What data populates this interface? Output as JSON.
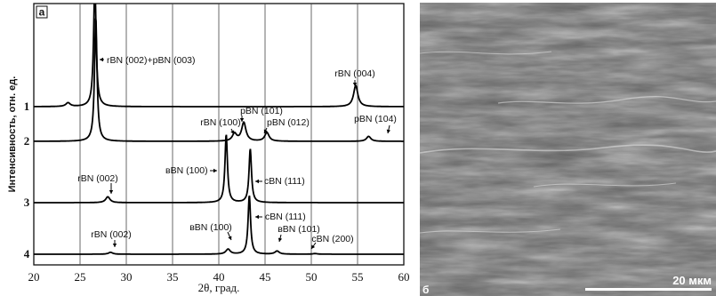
{
  "panel_a": {
    "letter": "а",
    "xlabel": "2θ, град.",
    "ylabel": "Интенсивность, отн. ед.",
    "x_ticks": [
      "20",
      "25",
      "30",
      "35",
      "40",
      "45",
      "50",
      "55",
      "60"
    ],
    "curve_labels": [
      "1",
      "2",
      "3",
      "4"
    ],
    "annotations": [
      "rBN (002)+pBN (003)",
      "rBN (004)",
      "pBN (101)",
      "rBN (100)",
      "pBN (012)",
      "pBN (104)",
      "вBN (100)",
      "rBN (002)",
      "cBN (111)",
      "cBN (111)",
      "вBN (100)",
      "rBN (002)",
      "вBN (101)",
      "cBN (200)"
    ]
  },
  "panel_b": {
    "letter": "б",
    "scale_label": "20 мкм"
  },
  "chart_data": {
    "type": "line",
    "xlim": [
      20,
      60
    ],
    "grid": true,
    "series": [
      {
        "name": "1",
        "peaks": [
          [
            23.7,
            0.03
          ],
          [
            26.6,
            1.0
          ],
          [
            54.8,
            0.17
          ]
        ]
      },
      {
        "name": "2",
        "peaks": [
          [
            26.7,
            1.0
          ],
          [
            41.7,
            0.06
          ],
          [
            42.7,
            0.15
          ],
          [
            45.2,
            0.07
          ],
          [
            56.2,
            0.04
          ]
        ]
      },
      {
        "name": "3",
        "peaks": [
          [
            28.0,
            0.06
          ],
          [
            40.8,
            0.7
          ],
          [
            43.4,
            0.55
          ]
        ]
      },
      {
        "name": "4",
        "peaks": [
          [
            28.3,
            0.03
          ],
          [
            41.0,
            0.08
          ],
          [
            43.3,
            0.95
          ],
          [
            46.3,
            0.05
          ],
          [
            50.4,
            0.01
          ]
        ]
      }
    ]
  }
}
